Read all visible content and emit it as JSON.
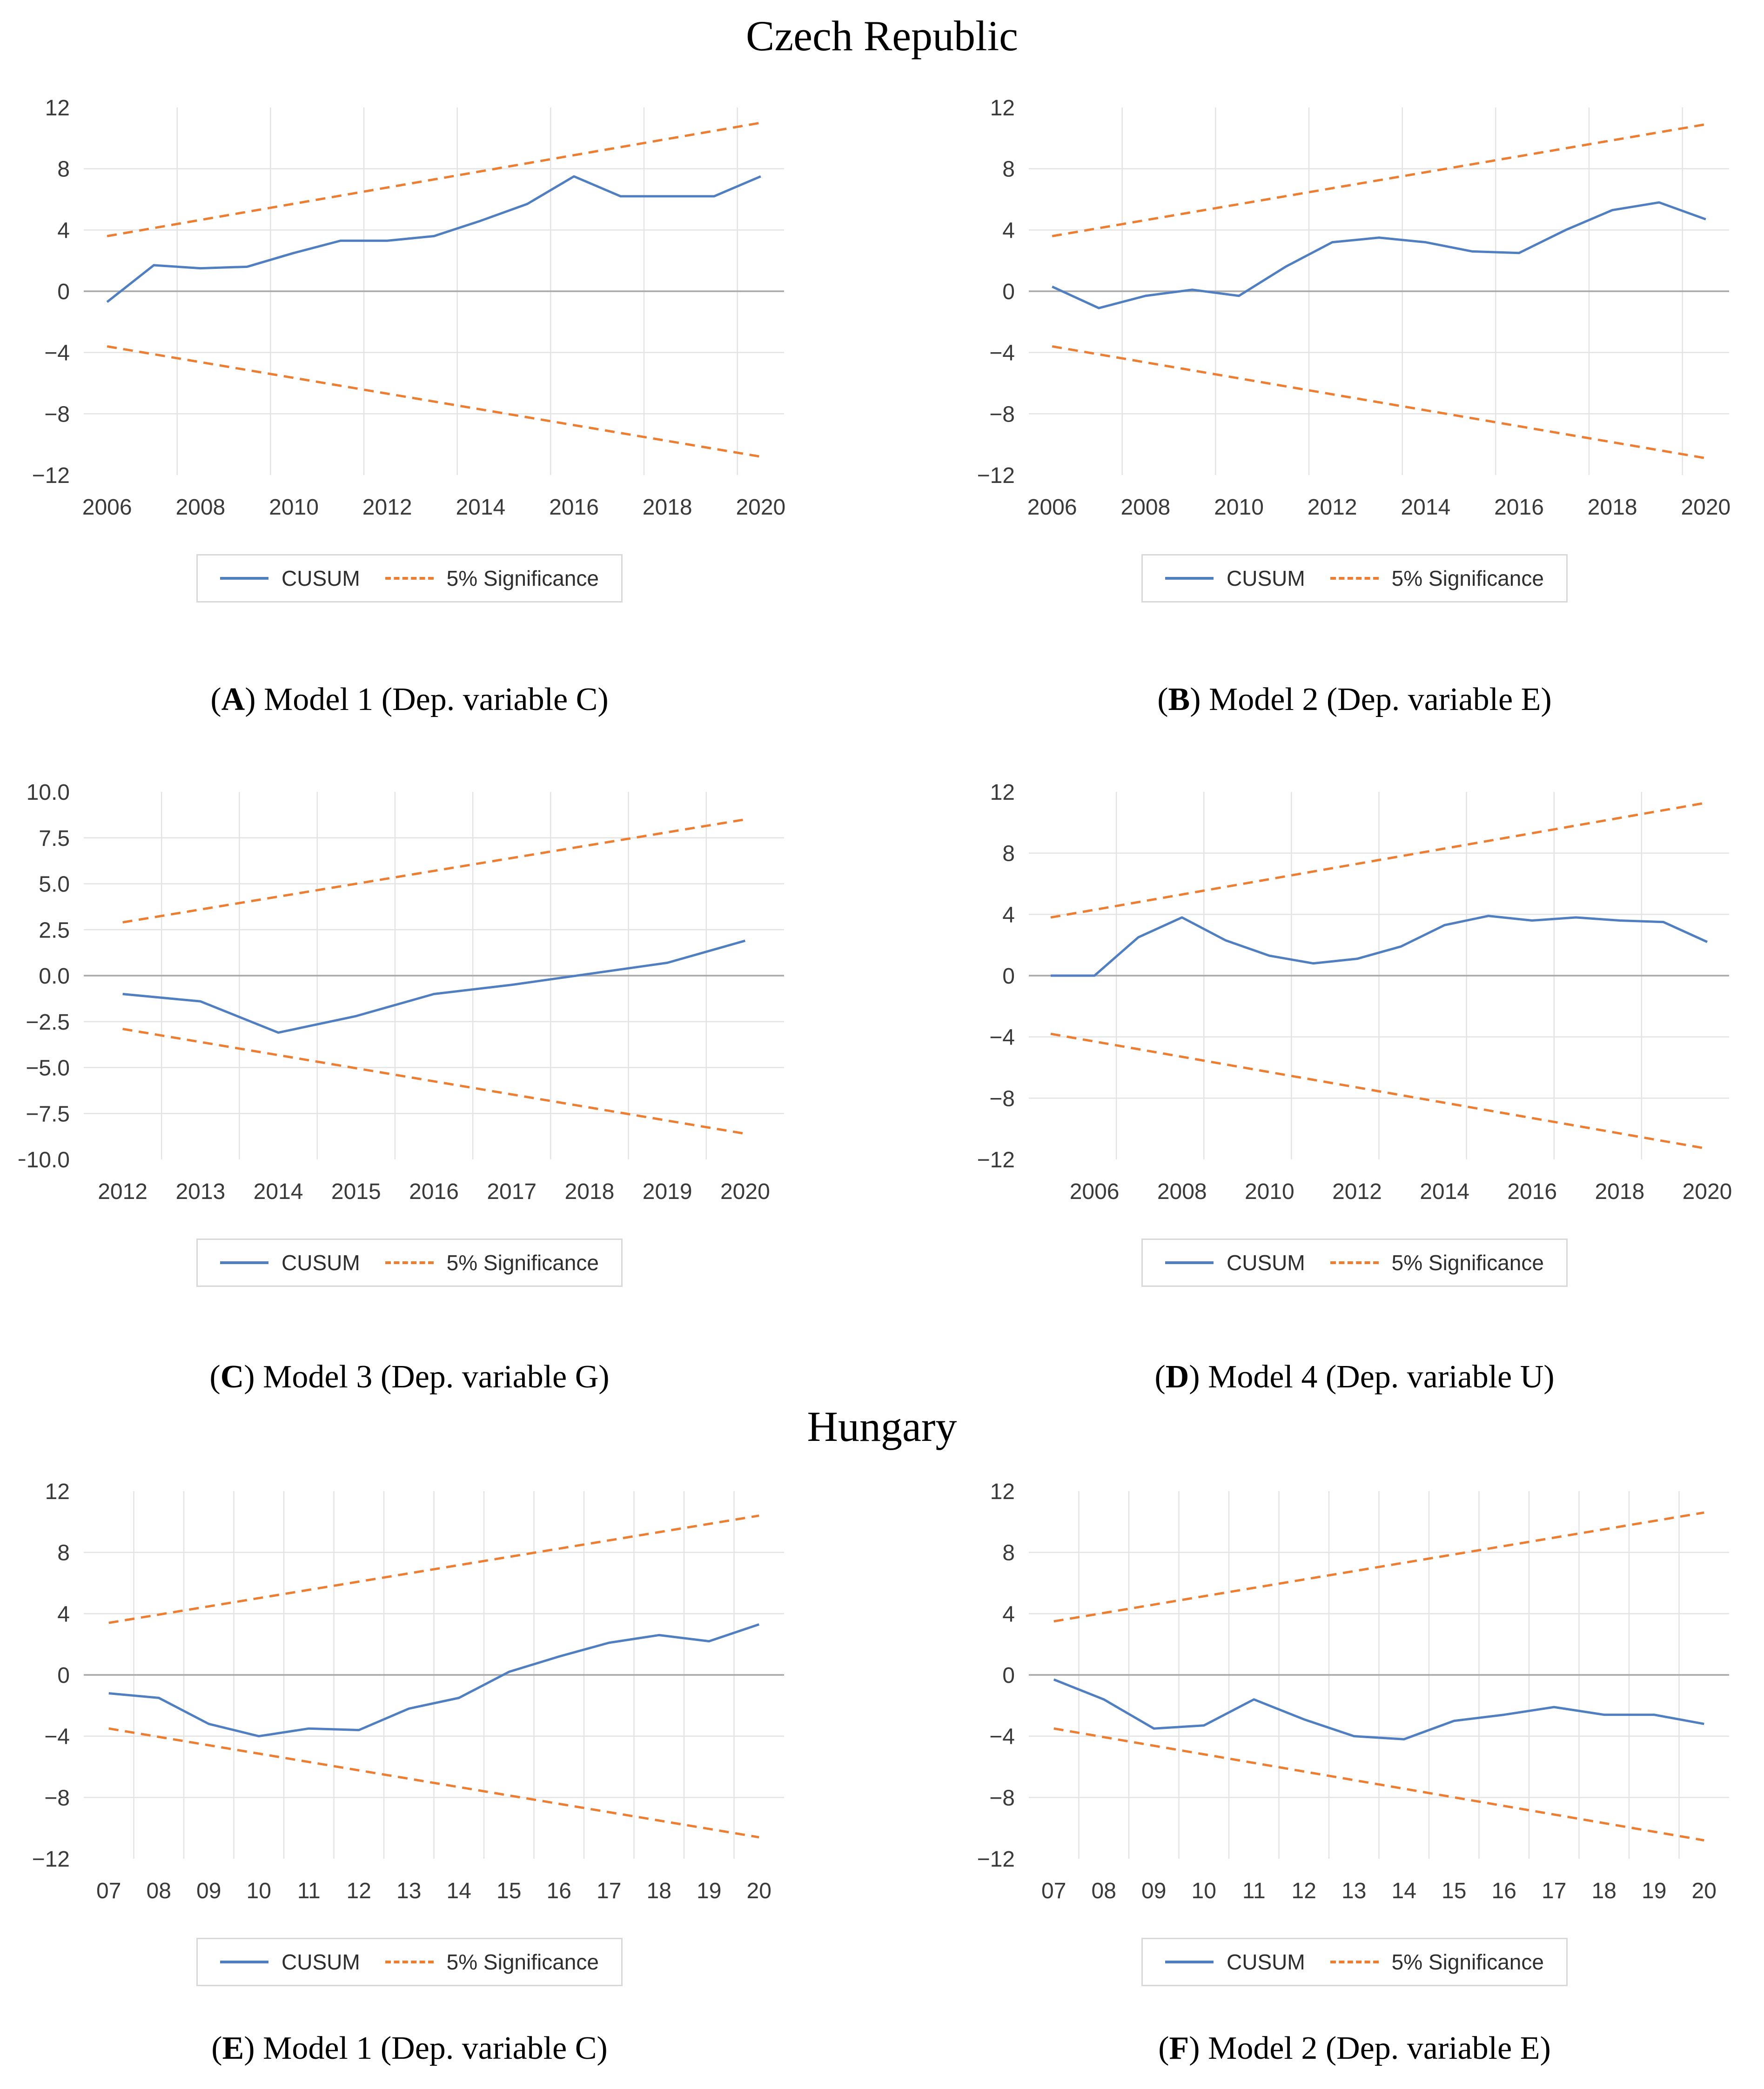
{
  "titles": {
    "czech": "Czech Republic",
    "hungary": "Hungary"
  },
  "colors": {
    "cusum": "#4f7ec1",
    "significance": "#ED7D31",
    "grid": "#e3e3e3",
    "zero_line": "#a9a9a9",
    "tick_text": "#3a3a3a"
  },
  "chart_data": [
    {
      "type": "line",
      "caption": {
        "prefix": "(",
        "letter": "A",
        "suffix": ") Model 1 (Dep. variable C)"
      },
      "legend": {
        "cusum": "CUSUM",
        "significance": "5% Significance"
      },
      "x": [
        2006,
        2007,
        2008,
        2009,
        2010,
        2011,
        2012,
        2013,
        2014,
        2015,
        2016,
        2017,
        2018,
        2019,
        2020
      ],
      "x_ticks": {
        "values": [
          2006,
          2008,
          2010,
          2012,
          2014,
          2016,
          2018,
          2020
        ],
        "labels": [
          "2006",
          "2008",
          "2010",
          "2012",
          "2014",
          "2016",
          "2018",
          "2020"
        ]
      },
      "y_axis": {
        "min": -12,
        "max": 12,
        "tick_values": [
          12,
          8,
          4,
          0,
          -4,
          -8,
          -12
        ],
        "tick_labels": [
          "12",
          "8",
          "4",
          "0",
          "−4",
          "−8",
          "−12"
        ]
      },
      "series": [
        {
          "name": "CUSUM",
          "role": "cusum",
          "values": [
            -0.7,
            1.7,
            1.5,
            1.6,
            2.5,
            3.3,
            3.3,
            3.6,
            4.6,
            5.7,
            7.5,
            6.2,
            6.2,
            6.2,
            7.5
          ]
        },
        {
          "name": "5% Significance",
          "role": "sig-upper",
          "endpoints": [
            3.6,
            11.0
          ]
        },
        {
          "name": "5% Significance",
          "role": "sig-lower",
          "endpoints": [
            -3.6,
            -10.8
          ]
        }
      ]
    },
    {
      "type": "line",
      "caption": {
        "prefix": "(",
        "letter": "B",
        "suffix": ") Model 2 (Dep. variable E)"
      },
      "legend": {
        "cusum": "CUSUM",
        "significance": "5% Significance"
      },
      "x": [
        2006,
        2007,
        2008,
        2009,
        2010,
        2011,
        2012,
        2013,
        2014,
        2015,
        2016,
        2017,
        2018,
        2019,
        2020
      ],
      "x_ticks": {
        "values": [
          2006,
          2008,
          2010,
          2012,
          2014,
          2016,
          2018,
          2020
        ],
        "labels": [
          "2006",
          "2008",
          "2010",
          "2012",
          "2014",
          "2016",
          "2018",
          "2020"
        ]
      },
      "y_axis": {
        "min": -12,
        "max": 12,
        "tick_values": [
          12,
          8,
          4,
          0,
          -4,
          -8,
          -12
        ],
        "tick_labels": [
          "12",
          "8",
          "4",
          "0",
          "−4",
          "−8",
          "−12"
        ]
      },
      "series": [
        {
          "name": "CUSUM",
          "role": "cusum",
          "values": [
            0.3,
            -1.1,
            -0.3,
            0.1,
            -0.3,
            1.6,
            3.2,
            3.5,
            3.2,
            2.6,
            2.5,
            4.0,
            5.3,
            5.8,
            4.7
          ]
        },
        {
          "name": "5% Significance",
          "role": "sig-upper",
          "endpoints": [
            3.6,
            10.9
          ]
        },
        {
          "name": "5% Significance",
          "role": "sig-lower",
          "endpoints": [
            -3.6,
            -10.9
          ]
        }
      ]
    },
    {
      "type": "line",
      "caption": {
        "prefix": "(",
        "letter": "C",
        "suffix": ") Model 3 (Dep. variable G)"
      },
      "legend": {
        "cusum": "CUSUM",
        "significance": "5% Significance"
      },
      "x": [
        2012,
        2013,
        2014,
        2015,
        2016,
        2017,
        2018,
        2019,
        2020
      ],
      "x_ticks": {
        "values": [
          2012,
          2013,
          2014,
          2015,
          2016,
          2017,
          2018,
          2019,
          2020
        ],
        "labels": [
          "2012",
          "2013",
          "2014",
          "2015",
          "2016",
          "2017",
          "2018",
          "2019",
          "2020"
        ]
      },
      "y_axis": {
        "min": -10,
        "max": 10,
        "tick_values": [
          10,
          7.5,
          5,
          2.5,
          0,
          -2.5,
          -5,
          -7.5,
          -10
        ],
        "tick_labels": [
          "10.0",
          "7.5",
          "5.0",
          "2.5",
          "0.0",
          "−2.5",
          "−5.0",
          "−7.5",
          "−10.0"
        ]
      },
      "series": [
        {
          "name": "CUSUM",
          "role": "cusum",
          "values": [
            -1.0,
            -1.4,
            -3.1,
            -2.2,
            -1.0,
            -0.5,
            0.1,
            0.7,
            1.9
          ]
        },
        {
          "name": "5% Significance",
          "role": "sig-upper",
          "endpoints": [
            2.9,
            8.5
          ]
        },
        {
          "name": "5% Significance",
          "role": "sig-lower",
          "endpoints": [
            -2.9,
            -8.6
          ]
        }
      ]
    },
    {
      "type": "line",
      "caption": {
        "prefix": "(",
        "letter": "D",
        "suffix": ") Model 4 (Dep. variable U)"
      },
      "legend": {
        "cusum": "CUSUM",
        "significance": "5% Significance"
      },
      "x": [
        2005,
        2006,
        2007,
        2008,
        2009,
        2010,
        2011,
        2012,
        2013,
        2014,
        2015,
        2016,
        2017,
        2018,
        2019,
        2020
      ],
      "x_ticks": {
        "values": [
          2006,
          2008,
          2010,
          2012,
          2014,
          2016,
          2018,
          2020
        ],
        "labels": [
          "2006",
          "2008",
          "2010",
          "2012",
          "2014",
          "2016",
          "2018",
          "2020"
        ]
      },
      "y_axis": {
        "min": -12,
        "max": 12,
        "tick_values": [
          12,
          8,
          4,
          0,
          -4,
          -8,
          -12
        ],
        "tick_labels": [
          "12",
          "8",
          "4",
          "0",
          "−4",
          "−8",
          "−12"
        ]
      },
      "series": [
        {
          "name": "CUSUM",
          "role": "cusum",
          "values": [
            0.0,
            0.0,
            2.5,
            3.8,
            2.3,
            1.3,
            0.8,
            1.1,
            1.9,
            3.3,
            3.9,
            3.6,
            3.8,
            3.6,
            3.5,
            2.2
          ]
        },
        {
          "name": "5% Significance",
          "role": "sig-upper",
          "endpoints": [
            3.8,
            11.3
          ]
        },
        {
          "name": "5% Significance",
          "role": "sig-lower",
          "endpoints": [
            -3.8,
            -11.3
          ]
        }
      ]
    },
    {
      "type": "line",
      "caption": {
        "prefix": "(",
        "letter": "E",
        "suffix": ") Model 1 (Dep. variable C)"
      },
      "legend": {
        "cusum": "CUSUM",
        "significance": "5% Significance"
      },
      "x": [
        2007,
        2008,
        2009,
        2010,
        2011,
        2012,
        2013,
        2014,
        2015,
        2016,
        2017,
        2018,
        2019,
        2020
      ],
      "x_ticks": {
        "values": [
          2007,
          2008,
          2009,
          2010,
          2011,
          2012,
          2013,
          2014,
          2015,
          2016,
          2017,
          2018,
          2019,
          2020
        ],
        "labels": [
          "07",
          "08",
          "09",
          "10",
          "11",
          "12",
          "13",
          "14",
          "15",
          "16",
          "17",
          "18",
          "19",
          "20"
        ]
      },
      "y_axis": {
        "min": -12,
        "max": 12,
        "tick_values": [
          12,
          8,
          4,
          0,
          -4,
          -8,
          -12
        ],
        "tick_labels": [
          "12",
          "8",
          "4",
          "0",
          "−4",
          "−8",
          "−12"
        ]
      },
      "series": [
        {
          "name": "CUSUM",
          "role": "cusum",
          "values": [
            -1.2,
            -1.5,
            -3.2,
            -4.0,
            -3.5,
            -3.6,
            -2.2,
            -1.5,
            0.2,
            1.2,
            2.1,
            2.6,
            2.2,
            3.3
          ]
        },
        {
          "name": "5% Significance",
          "role": "sig-upper",
          "endpoints": [
            3.4,
            10.4
          ]
        },
        {
          "name": "5% Significance",
          "role": "sig-lower",
          "endpoints": [
            -3.5,
            -10.6
          ]
        }
      ]
    },
    {
      "type": "line",
      "caption": {
        "prefix": "(",
        "letter": "F",
        "suffix": ") Model 2 (Dep. variable E)"
      },
      "legend": {
        "cusum": "CUSUM",
        "significance": "5% Significance"
      },
      "x": [
        2007,
        2008,
        2009,
        2010,
        2011,
        2012,
        2013,
        2014,
        2015,
        2016,
        2017,
        2018,
        2019,
        2020
      ],
      "x_ticks": {
        "values": [
          2007,
          2008,
          2009,
          2010,
          2011,
          2012,
          2013,
          2014,
          2015,
          2016,
          2017,
          2018,
          2019,
          2020
        ],
        "labels": [
          "07",
          "08",
          "09",
          "10",
          "11",
          "12",
          "13",
          "14",
          "15",
          "16",
          "17",
          "18",
          "19",
          "20"
        ]
      },
      "y_axis": {
        "min": -12,
        "max": 12,
        "tick_values": [
          12,
          8,
          4,
          0,
          -4,
          -8,
          -12
        ],
        "tick_labels": [
          "12",
          "8",
          "4",
          "0",
          "−4",
          "−8",
          "−12"
        ]
      },
      "series": [
        {
          "name": "CUSUM",
          "role": "cusum",
          "values": [
            -0.3,
            -1.6,
            -3.5,
            -3.3,
            -1.6,
            -2.9,
            -4.0,
            -4.2,
            -3.0,
            -2.6,
            -2.1,
            -2.6,
            -2.6,
            -3.2
          ]
        },
        {
          "name": "5% Significance",
          "role": "sig-upper",
          "endpoints": [
            3.5,
            10.6
          ]
        },
        {
          "name": "5% Significance",
          "role": "sig-lower",
          "endpoints": [
            -3.5,
            -10.8
          ]
        }
      ]
    }
  ]
}
